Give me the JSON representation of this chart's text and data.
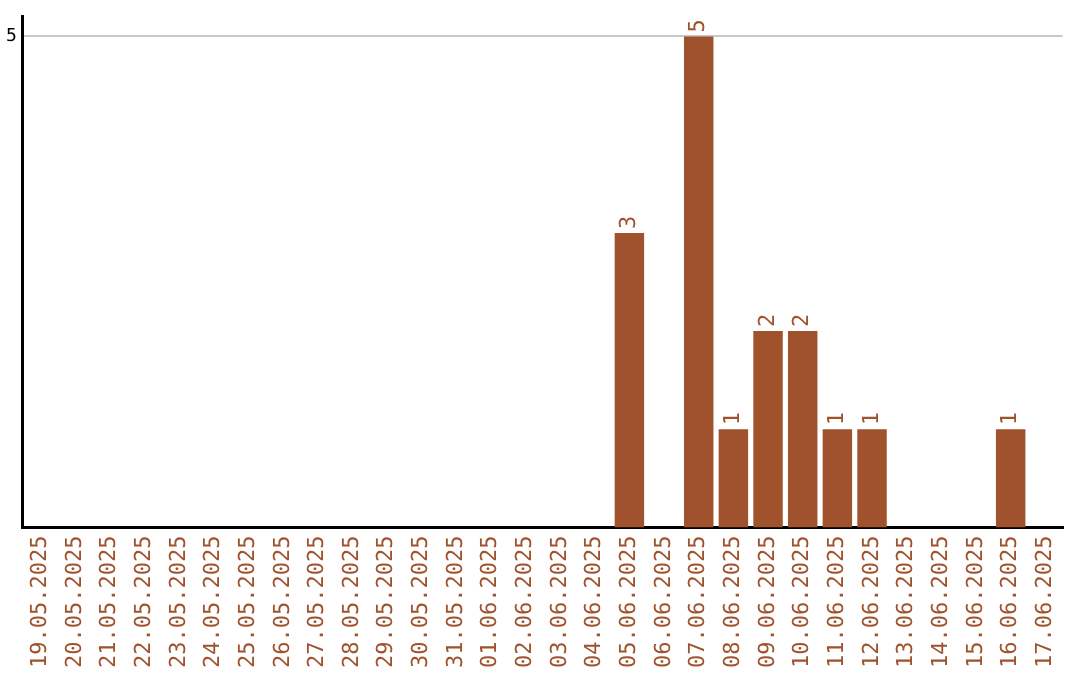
{
  "chart_data": {
    "type": "bar",
    "categories": [
      "19.05.2025",
      "20.05.2025",
      "21.05.2025",
      "22.05.2025",
      "23.05.2025",
      "24.05.2025",
      "25.05.2025",
      "26.05.2025",
      "27.05.2025",
      "28.05.2025",
      "29.05.2025",
      "30.05.2025",
      "31.05.2025",
      "01.06.2025",
      "02.06.2025",
      "03.06.2025",
      "04.06.2025",
      "05.06.2025",
      "06.06.2025",
      "07.06.2025",
      "08.06.2025",
      "09.06.2025",
      "10.06.2025",
      "11.06.2025",
      "12.06.2025",
      "13.06.2025",
      "14.06.2025",
      "15.06.2025",
      "16.06.2025",
      "17.06.2025"
    ],
    "values": [
      null,
      null,
      null,
      null,
      null,
      null,
      null,
      null,
      null,
      null,
      null,
      null,
      null,
      null,
      null,
      null,
      null,
      3,
      null,
      5,
      1,
      2,
      2,
      1,
      1,
      null,
      null,
      null,
      1,
      null
    ],
    "value_labels": [
      null,
      null,
      null,
      null,
      null,
      null,
      null,
      null,
      null,
      null,
      null,
      null,
      null,
      null,
      null,
      null,
      null,
      "3",
      null,
      "5",
      "1",
      "2",
      "2",
      "1",
      "1",
      null,
      null,
      null,
      "1",
      null
    ],
    "color": "#a0522d",
    "ylim": [
      0,
      5.2
    ],
    "yticks": [
      5
    ],
    "grid": "y",
    "legend": false
  }
}
